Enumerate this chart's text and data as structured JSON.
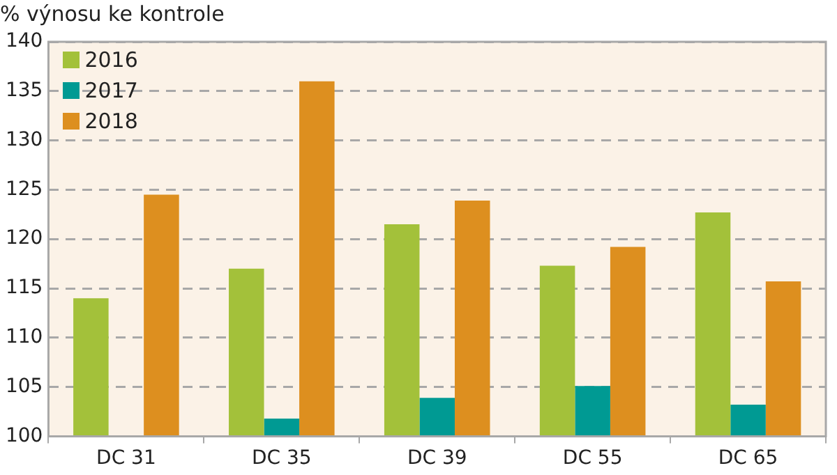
{
  "chart_data": {
    "type": "bar",
    "ylabel": "% výnosu ke kontrole",
    "categories": [
      "DC 31",
      "DC 35",
      "DC 39",
      "DC 55",
      "DC 65"
    ],
    "series": [
      {
        "name": "2016",
        "color": "#a3c13a",
        "values": [
          114,
          117,
          121.5,
          117.3,
          122.7
        ]
      },
      {
        "name": "2017",
        "color": "#009a93",
        "values": [
          null,
          101.8,
          103.9,
          105.1,
          103.2
        ]
      },
      {
        "name": "2018",
        "color": "#dd8f1f",
        "values": [
          124.5,
          136,
          123.9,
          119.2,
          115.7
        ]
      }
    ],
    "ylim": [
      100,
      140
    ],
    "yticks": [
      100,
      105,
      110,
      115,
      120,
      125,
      130,
      135,
      140
    ],
    "grid": "y",
    "legend": "top left"
  }
}
